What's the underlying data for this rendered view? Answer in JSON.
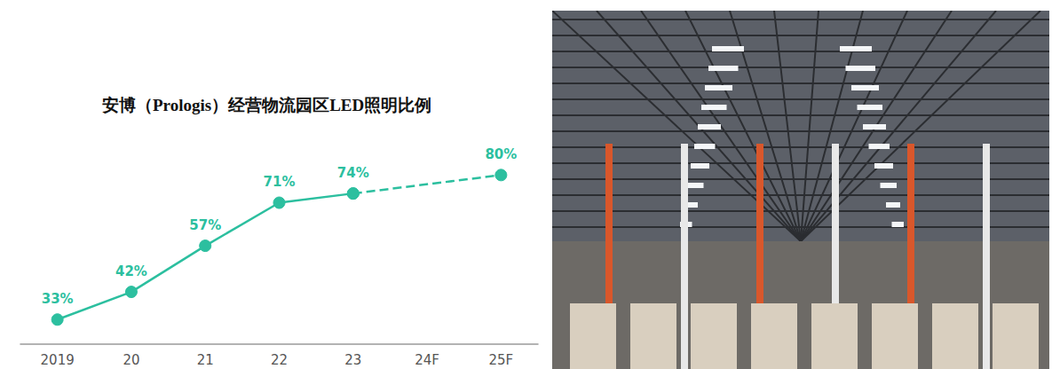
{
  "chart_data": {
    "type": "line",
    "title": "安博（Prologis）经营物流园区LED照明比例",
    "categories": [
      "2019",
      "20",
      "21",
      "22",
      "23",
      "24F",
      "25F"
    ],
    "ylim": [
      25,
      85
    ],
    "grid": false,
    "tick_labels": "x",
    "data_labels": true,
    "color": "#2cbf9f",
    "series": [
      {
        "values": [
          33,
          42,
          57,
          71,
          74,
          null,
          null
        ],
        "value_labels": [
          "33%",
          "42%",
          "57%",
          "71%",
          "74%",
          null,
          null
        ],
        "line_style": "solid",
        "marker": "circle",
        "color": "#2cbf9f"
      },
      {
        "values": [
          null,
          null,
          null,
          null,
          74,
          null,
          80
        ],
        "value_labels": [
          null,
          null,
          null,
          null,
          null,
          null,
          "80%"
        ],
        "line_style": "dashed",
        "marker": "circle",
        "color": "#2cbf9f"
      }
    ]
  }
}
